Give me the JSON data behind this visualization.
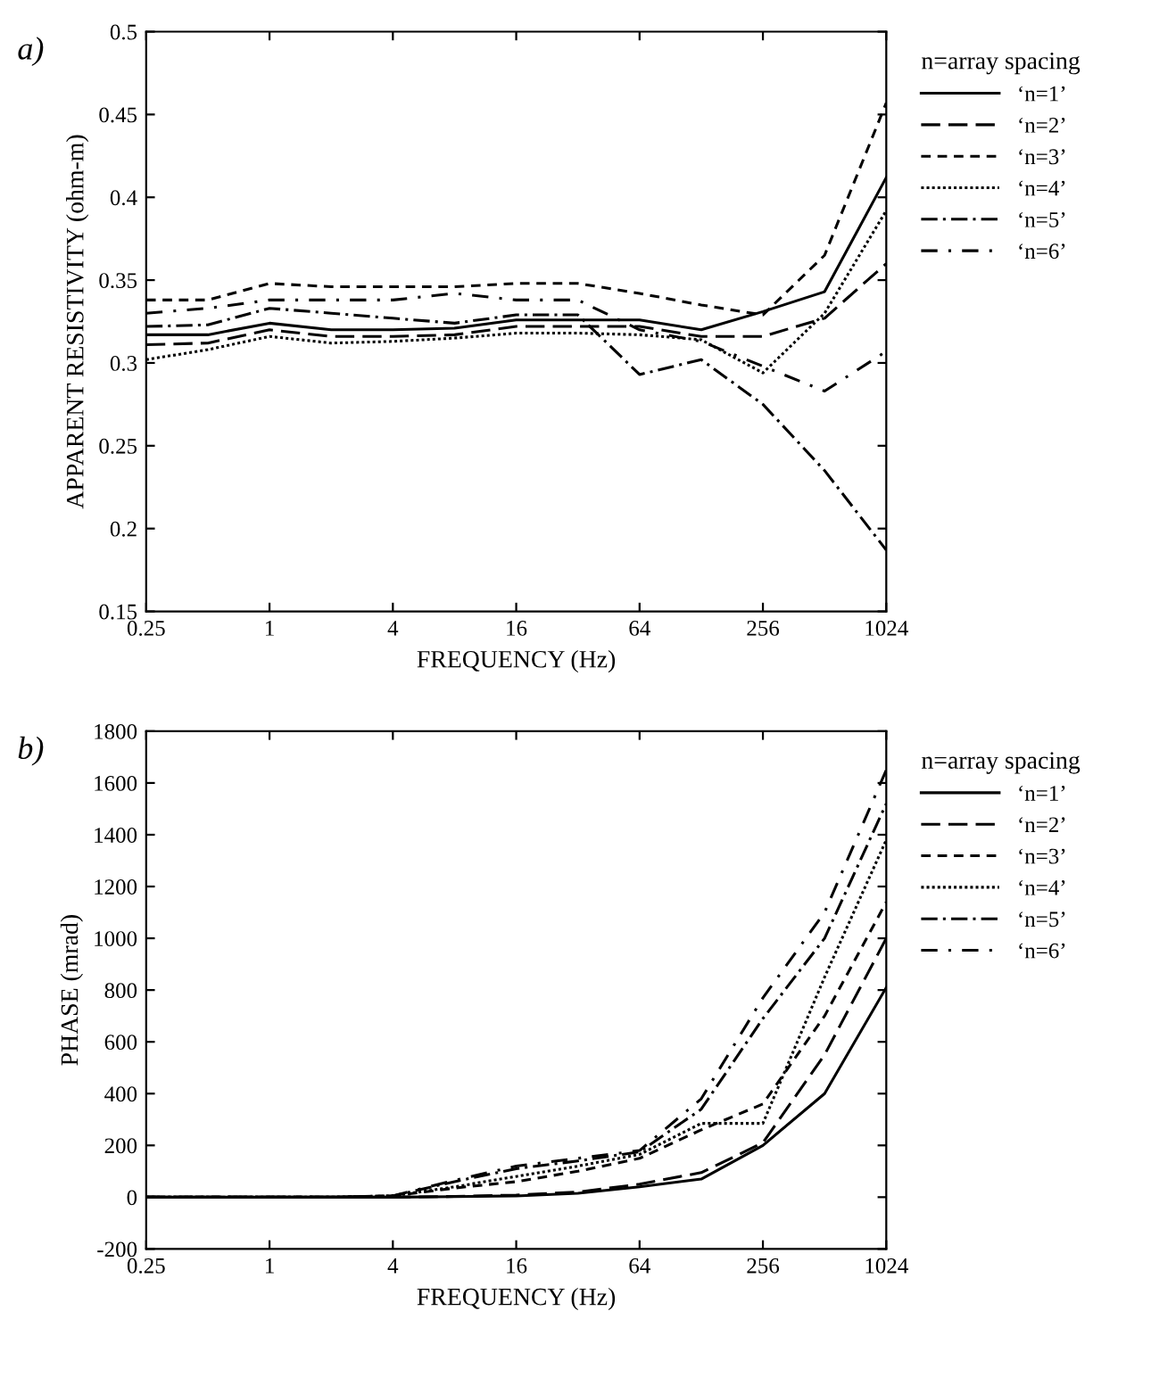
{
  "chart_data": [
    {
      "type": "line",
      "annotations": [
        "a)"
      ],
      "xlabel": "FREQUENCY (Hz)",
      "ylabel": "APPARENT RESISTIVITY (ohm-m)",
      "legend_title": "n=array spacing",
      "legend": "top right",
      "log": "x",
      "grid": false,
      "x": [
        0.25,
        0.5,
        1,
        2,
        4,
        8,
        16,
        32,
        64,
        128,
        256,
        512,
        1024
      ],
      "xlim": [
        0.25,
        1024
      ],
      "xticks": [
        0.25,
        1,
        4,
        16,
        64,
        256,
        1024
      ],
      "ylim": [
        0.15,
        0.5
      ],
      "yticks": [
        0.15,
        0.2,
        0.25,
        0.3,
        0.35,
        0.4,
        0.45,
        0.5
      ],
      "series": [
        {
          "name": "‘n=1’",
          "color": "#000000",
          "line_style": "solid",
          "values": [
            0.317,
            0.317,
            0.324,
            0.32,
            0.32,
            0.321,
            0.326,
            0.326,
            0.326,
            0.32,
            0.331,
            0.343,
            0.412
          ]
        },
        {
          "name": "‘n=2’",
          "color": "#000000",
          "line_style": "dashed",
          "values": [
            0.311,
            0.312,
            0.32,
            0.316,
            0.316,
            0.317,
            0.322,
            0.322,
            0.322,
            0.316,
            0.316,
            0.327,
            0.36
          ]
        },
        {
          "name": "‘n=3’",
          "color": "#000000",
          "line_style": "short dashed",
          "values": [
            0.338,
            0.338,
            0.348,
            0.346,
            0.346,
            0.346,
            0.348,
            0.348,
            0.342,
            0.335,
            0.329,
            0.365,
            0.457
          ]
        },
        {
          "name": "‘n=4’",
          "color": "#000000",
          "line_style": "dotted",
          "values": [
            0.302,
            0.308,
            0.316,
            0.312,
            0.313,
            0.315,
            0.318,
            0.318,
            0.317,
            0.314,
            0.294,
            0.33,
            0.392
          ]
        },
        {
          "name": "‘n=5’",
          "color": "#000000",
          "line_style": "dashdot",
          "values": [
            0.322,
            0.323,
            0.333,
            0.33,
            0.327,
            0.324,
            0.329,
            0.329,
            0.293,
            0.302,
            0.275,
            0.235,
            0.187
          ]
        },
        {
          "name": "‘n=6’",
          "color": "#000000",
          "line_style": "loose dashdot",
          "values": [
            0.33,
            0.333,
            0.338,
            0.338,
            0.338,
            0.342,
            0.338,
            0.338,
            0.32,
            0.313,
            0.298,
            0.283,
            0.307
          ]
        }
      ]
    },
    {
      "type": "line",
      "annotations": [
        "b)"
      ],
      "xlabel": "FREQUENCY (Hz)",
      "ylabel": "PHASE (mrad)",
      "legend_title": "n=array spacing",
      "legend": "top right",
      "log": "x",
      "grid": false,
      "x": [
        0.25,
        0.5,
        1,
        2,
        4,
        8,
        16,
        32,
        64,
        128,
        256,
        512,
        1024
      ],
      "xlim": [
        0.25,
        1024
      ],
      "xticks": [
        0.25,
        1,
        4,
        16,
        64,
        256,
        1024
      ],
      "ylim": [
        -200,
        1800
      ],
      "yticks": [
        {
          "value": -200,
          "label": "-200"
        },
        0,
        200,
        400,
        600,
        800,
        1000,
        1200,
        1400,
        1600,
        1800
      ],
      "series": [
        {
          "name": "‘n=1’",
          "color": "#000000",
          "line_style": "solid",
          "values": [
            0,
            0,
            0,
            0,
            0,
            2,
            5,
            15,
            40,
            70,
            200,
            400,
            810
          ]
        },
        {
          "name": "‘n=2’",
          "color": "#000000",
          "line_style": "dashed",
          "values": [
            0,
            0,
            0,
            0,
            0,
            3,
            8,
            20,
            50,
            95,
            210,
            550,
            1000
          ]
        },
        {
          "name": "‘n=3’",
          "color": "#000000",
          "line_style": "short dashed",
          "values": [
            0,
            0,
            0,
            0,
            5,
            35,
            60,
            100,
            150,
            260,
            360,
            700,
            1140
          ]
        },
        {
          "name": "‘n=4’",
          "color": "#000000",
          "line_style": "dotted",
          "values": [
            0,
            0,
            0,
            0,
            5,
            40,
            80,
            120,
            165,
            285,
            285,
            850,
            1380
          ]
        },
        {
          "name": "‘n=5’",
          "color": "#000000",
          "line_style": "dashdot",
          "values": [
            0,
            0,
            0,
            0,
            5,
            60,
            110,
            140,
            175,
            340,
            690,
            1000,
            1520
          ]
        },
        {
          "name": "‘n=6’",
          "color": "#000000",
          "line_style": "loose dashdot",
          "values": [
            0,
            0,
            0,
            0,
            5,
            65,
            120,
            150,
            180,
            380,
            770,
            1100,
            1650
          ]
        }
      ]
    }
  ]
}
